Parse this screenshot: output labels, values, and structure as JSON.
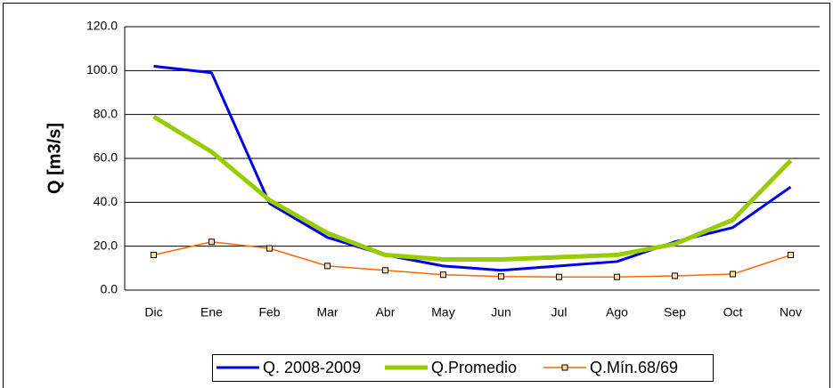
{
  "chart_data": {
    "type": "line",
    "y_label": "Q [m3/s]",
    "categories": [
      "Dic",
      "Ene",
      "Feb",
      "Mar",
      "Abr",
      "May",
      "Jun",
      "Jul",
      "Ago",
      "Sep",
      "Oct",
      "Nov"
    ],
    "series": [
      {
        "name": "Q. 2008-2009",
        "color": "#0000e6",
        "width": 3,
        "marker": false,
        "values": [
          102,
          99,
          39.5,
          24,
          16,
          11,
          9,
          11,
          13,
          22,
          28.5,
          47
        ]
      },
      {
        "name": "Q.Promedio",
        "color": "#99cc00",
        "width": 5,
        "marker": false,
        "values": [
          79,
          63,
          41,
          26,
          16,
          14,
          14,
          15,
          16,
          21,
          32,
          59
        ]
      },
      {
        "name": "Q.Mín.68/69",
        "color": "#ff6600",
        "width": 1.5,
        "marker": true,
        "values": [
          16,
          22,
          19,
          11,
          9,
          7,
          6.2,
          6,
          6,
          6.5,
          7.3,
          16
        ]
      }
    ],
    "ylim": [
      0,
      120
    ],
    "yticks": [
      {
        "value": 0,
        "label": "0.0"
      },
      {
        "value": 20,
        "label": "20.0"
      },
      {
        "value": 40,
        "label": "40.0"
      },
      {
        "value": 60,
        "label": "60.0"
      },
      {
        "value": 80,
        "label": "80.0"
      },
      {
        "value": 100,
        "label": "100.0"
      },
      {
        "value": 120,
        "label": "120.0"
      }
    ],
    "grid": true
  }
}
